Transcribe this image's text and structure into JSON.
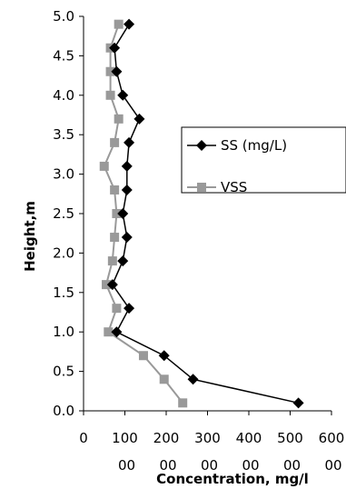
{
  "chart_data": {
    "type": "line",
    "title": "",
    "xlabel": "Concentration, mg/l",
    "ylabel": "Height,m",
    "xlim": [
      0,
      600
    ],
    "ylim": [
      0,
      5
    ],
    "x_ticks": [
      {
        "line1": "0",
        "line2": ""
      },
      {
        "line1": "100",
        "line2": "00"
      },
      {
        "line1": "200",
        "line2": "00"
      },
      {
        "line1": "300",
        "line2": "00"
      },
      {
        "line1": "400",
        "line2": "00"
      },
      {
        "line1": "500",
        "line2": "00"
      },
      {
        "line1": "600",
        "line2": "00"
      }
    ],
    "y_ticks": [
      "0.0",
      "0.5",
      "1.0",
      "1.5",
      "2.0",
      "2.5",
      "3.0",
      "3.5",
      "4.0",
      "4.5",
      "5.0"
    ],
    "grid": false,
    "legend_position": "right",
    "series": [
      {
        "name": "SS (mg/L)",
        "color": "#000000",
        "marker": "diamond",
        "points": [
          {
            "x": 520,
            "y": 0.1
          },
          {
            "x": 265,
            "y": 0.4
          },
          {
            "x": 195,
            "y": 0.7
          },
          {
            "x": 80,
            "y": 1.0
          },
          {
            "x": 110,
            "y": 1.3
          },
          {
            "x": 70,
            "y": 1.6
          },
          {
            "x": 95,
            "y": 1.9
          },
          {
            "x": 105,
            "y": 2.2
          },
          {
            "x": 95,
            "y": 2.5
          },
          {
            "x": 105,
            "y": 2.8
          },
          {
            "x": 105,
            "y": 3.1
          },
          {
            "x": 110,
            "y": 3.4
          },
          {
            "x": 135,
            "y": 3.7
          },
          {
            "x": 95,
            "y": 4.0
          },
          {
            "x": 80,
            "y": 4.3
          },
          {
            "x": 75,
            "y": 4.6
          },
          {
            "x": 110,
            "y": 4.9
          }
        ]
      },
      {
        "name": "VSS",
        "color": "#999999",
        "marker": "square",
        "points": [
          {
            "x": 240,
            "y": 0.1
          },
          {
            "x": 195,
            "y": 0.4
          },
          {
            "x": 145,
            "y": 0.7
          },
          {
            "x": 60,
            "y": 1.0
          },
          {
            "x": 80,
            "y": 1.3
          },
          {
            "x": 55,
            "y": 1.6
          },
          {
            "x": 70,
            "y": 1.9
          },
          {
            "x": 75,
            "y": 2.2
          },
          {
            "x": 80,
            "y": 2.5
          },
          {
            "x": 75,
            "y": 2.8
          },
          {
            "x": 50,
            "y": 3.1
          },
          {
            "x": 75,
            "y": 3.4
          },
          {
            "x": 85,
            "y": 3.7
          },
          {
            "x": 65,
            "y": 4.0
          },
          {
            "x": 65,
            "y": 4.3
          },
          {
            "x": 65,
            "y": 4.6
          },
          {
            "x": 85,
            "y": 4.9
          }
        ]
      }
    ]
  }
}
